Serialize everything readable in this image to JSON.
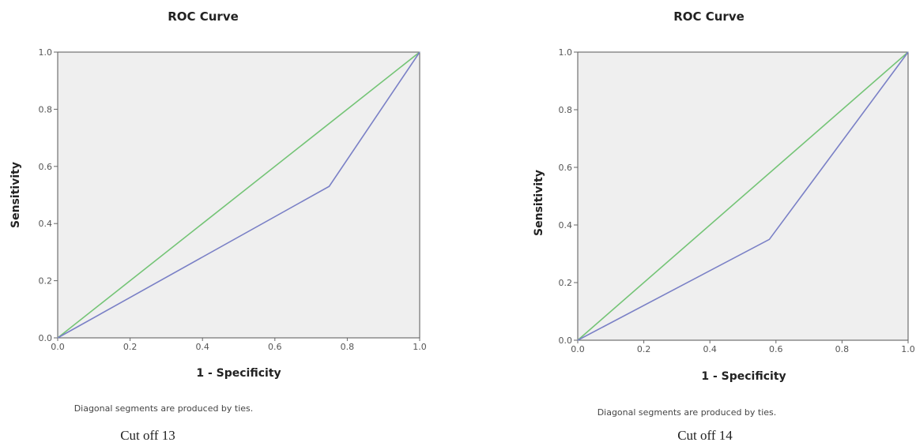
{
  "colors": {
    "ref_line": "#74c476",
    "roc_line": "#7a80c6",
    "plot_bg": "#efefef",
    "frame": "#555555"
  },
  "chart_data": [
    {
      "type": "line",
      "title": "ROC Curve",
      "xlabel": "1 - Specificity",
      "ylabel": "Sensitivity",
      "xlim": [
        0,
        1
      ],
      "ylim": [
        0,
        1
      ],
      "xticks": [
        "0.0",
        "0.2",
        "0.4",
        "0.6",
        "0.8",
        "1.0"
      ],
      "yticks": [
        "0.0",
        "0.2",
        "0.4",
        "0.6",
        "0.8",
        "1.0"
      ],
      "grid": false,
      "series": [
        {
          "role": "reference",
          "x": [
            0,
            1
          ],
          "y": [
            0,
            1
          ]
        },
        {
          "role": "roc",
          "x": [
            0,
            0.75,
            1
          ],
          "y": [
            0,
            0.53,
            1
          ]
        }
      ],
      "footnote": "Diagonal segments are produced by ties.",
      "caption": "Cut off 13"
    },
    {
      "type": "line",
      "title": "ROC Curve",
      "xlabel": "1 - Specificity",
      "ylabel": "Sensitivity",
      "xlim": [
        0,
        1
      ],
      "ylim": [
        0,
        1
      ],
      "xticks": [
        "0.0",
        "0.2",
        "0.4",
        "0.6",
        "0.8",
        "1.0"
      ],
      "yticks": [
        "0.0",
        "0.2",
        "0.4",
        "0.6",
        "0.8",
        "1.0"
      ],
      "grid": false,
      "series": [
        {
          "role": "reference",
          "x": [
            0,
            1
          ],
          "y": [
            0,
            1
          ]
        },
        {
          "role": "roc",
          "x": [
            0,
            0.58,
            1
          ],
          "y": [
            0,
            0.35,
            1
          ]
        }
      ],
      "footnote": "Diagonal segments are produced by ties.",
      "caption": "Cut off 14"
    }
  ]
}
